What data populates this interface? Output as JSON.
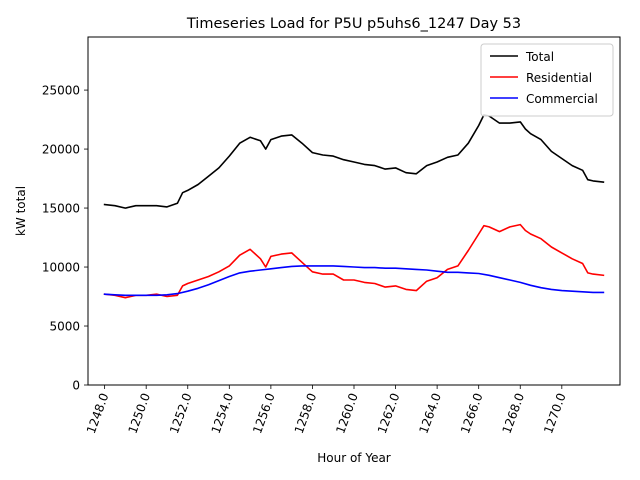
{
  "chart_data": {
    "type": "line",
    "title": "Timeseries Load for P5U p5uhs6_1247  Day 53",
    "xlabel": "Hour of Year",
    "ylabel": "kW total",
    "xlim": [
      1247.2,
      1272.8
    ],
    "ylim": [
      0,
      29500
    ],
    "grid": false,
    "legend_position": "top-right",
    "xticks": [
      1248,
      1250,
      1252,
      1254,
      1256,
      1258,
      1260,
      1262,
      1264,
      1266,
      1268,
      1270
    ],
    "xtick_labels": [
      "1248.0",
      "1250.0",
      "1252.0",
      "1254.0",
      "1256.0",
      "1258.0",
      "1260.0",
      "1262.0",
      "1264.0",
      "1266.0",
      "1268.0",
      "1270.0"
    ],
    "yticks": [
      0,
      5000,
      10000,
      15000,
      20000,
      25000
    ],
    "ytick_labels": [
      "0",
      "5000",
      "10000",
      "15000",
      "20000",
      "25000"
    ],
    "series": [
      {
        "name": "Total",
        "color": "#000000",
        "points": [
          [
            1248.0,
            15300
          ],
          [
            1248.5,
            15200
          ],
          [
            1249.0,
            15000
          ],
          [
            1249.5,
            15200
          ],
          [
            1250.0,
            15200
          ],
          [
            1250.5,
            15200
          ],
          [
            1251.0,
            15100
          ],
          [
            1251.5,
            15400
          ],
          [
            1251.75,
            16300
          ],
          [
            1252.0,
            16500
          ],
          [
            1252.5,
            17000
          ],
          [
            1253.0,
            17700
          ],
          [
            1253.5,
            18400
          ],
          [
            1254.0,
            19400
          ],
          [
            1254.5,
            20500
          ],
          [
            1255.0,
            21000
          ],
          [
            1255.5,
            20700
          ],
          [
            1255.75,
            20000
          ],
          [
            1256.0,
            20800
          ],
          [
            1256.5,
            21100
          ],
          [
            1257.0,
            21200
          ],
          [
            1257.5,
            20500
          ],
          [
            1258.0,
            19700
          ],
          [
            1258.5,
            19500
          ],
          [
            1259.0,
            19400
          ],
          [
            1259.5,
            19100
          ],
          [
            1260.0,
            18900
          ],
          [
            1260.5,
            18700
          ],
          [
            1261.0,
            18600
          ],
          [
            1261.5,
            18300
          ],
          [
            1262.0,
            18400
          ],
          [
            1262.5,
            18000
          ],
          [
            1263.0,
            17900
          ],
          [
            1263.5,
            18600
          ],
          [
            1264.0,
            18900
          ],
          [
            1264.5,
            19300
          ],
          [
            1265.0,
            19500
          ],
          [
            1265.5,
            20500
          ],
          [
            1266.0,
            22000
          ],
          [
            1266.25,
            22900
          ],
          [
            1266.5,
            22800
          ],
          [
            1267.0,
            22200
          ],
          [
            1267.5,
            22200
          ],
          [
            1268.0,
            22300
          ],
          [
            1268.25,
            21700
          ],
          [
            1268.5,
            21300
          ],
          [
            1269.0,
            20800
          ],
          [
            1269.5,
            19800
          ],
          [
            1270.0,
            19200
          ],
          [
            1270.5,
            18600
          ],
          [
            1271.0,
            18200
          ],
          [
            1271.25,
            17400
          ],
          [
            1271.5,
            17300
          ],
          [
            1272.0,
            17200
          ]
        ]
      },
      {
        "name": "Residential",
        "color": "#ff0000",
        "points": [
          [
            1248.0,
            7700
          ],
          [
            1248.5,
            7600
          ],
          [
            1249.0,
            7400
          ],
          [
            1249.5,
            7600
          ],
          [
            1250.0,
            7600
          ],
          [
            1250.5,
            7700
          ],
          [
            1251.0,
            7500
          ],
          [
            1251.5,
            7600
          ],
          [
            1251.75,
            8400
          ],
          [
            1252.0,
            8600
          ],
          [
            1252.5,
            8900
          ],
          [
            1253.0,
            9200
          ],
          [
            1253.5,
            9600
          ],
          [
            1254.0,
            10100
          ],
          [
            1254.5,
            11000
          ],
          [
            1255.0,
            11500
          ],
          [
            1255.5,
            10700
          ],
          [
            1255.75,
            10000
          ],
          [
            1256.0,
            10900
          ],
          [
            1256.5,
            11100
          ],
          [
            1257.0,
            11200
          ],
          [
            1257.5,
            10400
          ],
          [
            1258.0,
            9600
          ],
          [
            1258.5,
            9400
          ],
          [
            1259.0,
            9400
          ],
          [
            1259.5,
            8900
          ],
          [
            1260.0,
            8900
          ],
          [
            1260.5,
            8700
          ],
          [
            1261.0,
            8600
          ],
          [
            1261.5,
            8300
          ],
          [
            1262.0,
            8400
          ],
          [
            1262.5,
            8100
          ],
          [
            1263.0,
            8000
          ],
          [
            1263.5,
            8800
          ],
          [
            1264.0,
            9100
          ],
          [
            1264.5,
            9800
          ],
          [
            1265.0,
            10100
          ],
          [
            1265.5,
            11400
          ],
          [
            1266.0,
            12800
          ],
          [
            1266.25,
            13500
          ],
          [
            1266.5,
            13400
          ],
          [
            1267.0,
            13000
          ],
          [
            1267.5,
            13400
          ],
          [
            1268.0,
            13600
          ],
          [
            1268.25,
            13100
          ],
          [
            1268.5,
            12800
          ],
          [
            1269.0,
            12400
          ],
          [
            1269.5,
            11700
          ],
          [
            1270.0,
            11200
          ],
          [
            1270.5,
            10700
          ],
          [
            1271.0,
            10300
          ],
          [
            1271.25,
            9500
          ],
          [
            1271.5,
            9400
          ],
          [
            1272.0,
            9300
          ]
        ]
      },
      {
        "name": "Commercial",
        "color": "#0000ff",
        "points": [
          [
            1248.0,
            7700
          ],
          [
            1248.5,
            7650
          ],
          [
            1249.0,
            7600
          ],
          [
            1249.5,
            7600
          ],
          [
            1250.0,
            7600
          ],
          [
            1250.5,
            7600
          ],
          [
            1251.0,
            7650
          ],
          [
            1251.5,
            7750
          ],
          [
            1252.0,
            7950
          ],
          [
            1252.5,
            8200
          ],
          [
            1253.0,
            8500
          ],
          [
            1253.5,
            8850
          ],
          [
            1254.0,
            9200
          ],
          [
            1254.5,
            9500
          ],
          [
            1255.0,
            9650
          ],
          [
            1255.5,
            9750
          ],
          [
            1256.0,
            9850
          ],
          [
            1256.5,
            9950
          ],
          [
            1257.0,
            10050
          ],
          [
            1257.5,
            10100
          ],
          [
            1258.0,
            10100
          ],
          [
            1258.5,
            10100
          ],
          [
            1259.0,
            10100
          ],
          [
            1259.5,
            10050
          ],
          [
            1260.0,
            10000
          ],
          [
            1260.5,
            9950
          ],
          [
            1261.0,
            9950
          ],
          [
            1261.5,
            9900
          ],
          [
            1262.0,
            9900
          ],
          [
            1262.5,
            9850
          ],
          [
            1263.0,
            9800
          ],
          [
            1263.5,
            9750
          ],
          [
            1264.0,
            9650
          ],
          [
            1264.5,
            9550
          ],
          [
            1265.0,
            9550
          ],
          [
            1265.5,
            9500
          ],
          [
            1266.0,
            9450
          ],
          [
            1266.5,
            9300
          ],
          [
            1267.0,
            9100
          ],
          [
            1267.5,
            8900
          ],
          [
            1268.0,
            8700
          ],
          [
            1268.5,
            8450
          ],
          [
            1269.0,
            8250
          ],
          [
            1269.5,
            8100
          ],
          [
            1270.0,
            8000
          ],
          [
            1270.5,
            7950
          ],
          [
            1271.0,
            7900
          ],
          [
            1271.5,
            7850
          ],
          [
            1272.0,
            7850
          ]
        ]
      }
    ]
  }
}
